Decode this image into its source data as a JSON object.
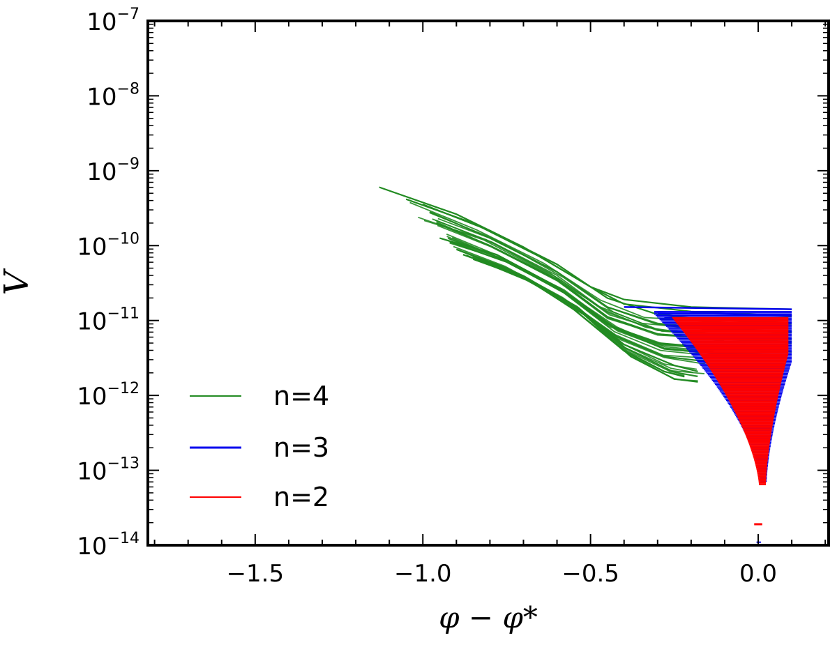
{
  "chart_data": {
    "type": "line",
    "title": "",
    "xlabel": "φ − φ*",
    "ylabel": "V",
    "xlim": [
      -1.82,
      0.21
    ],
    "ylim_log10": [
      -14,
      -7
    ],
    "yscale": "log",
    "grid": false,
    "legend_placement": "lower-left",
    "x_ticks": [
      {
        "value": -1.5,
        "label": "−1.5"
      },
      {
        "value": -1.0,
        "label": "−1.0"
      },
      {
        "value": -0.5,
        "label": "−0.5"
      },
      {
        "value": 0.0,
        "label": "0.0"
      }
    ],
    "y_ticks": [
      {
        "exp": -7,
        "base": "10",
        "sup": "−7"
      },
      {
        "exp": -8,
        "base": "10",
        "sup": "−8"
      },
      {
        "exp": -9,
        "base": "10",
        "sup": "−9"
      },
      {
        "exp": -10,
        "base": "10",
        "sup": "−10"
      },
      {
        "exp": -11,
        "base": "10",
        "sup": "−11"
      },
      {
        "exp": -12,
        "base": "10",
        "sup": "−12"
      },
      {
        "exp": -13,
        "base": "10",
        "sup": "−13"
      },
      {
        "exp": -14,
        "base": "10",
        "sup": "−14"
      }
    ],
    "series": [
      {
        "name": "n=4",
        "color": "#228B22",
        "description_points_log10V": [
          [
            [
              -1.13,
              -9.22
            ],
            [
              -0.9,
              -9.58
            ],
            [
              -0.7,
              -10.02
            ],
            [
              -0.5,
              -10.55
            ],
            [
              -0.4,
              -10.78
            ],
            [
              -0.2,
              -10.88
            ],
            [
              0.1,
              -10.94
            ]
          ],
          [
            [
              -1.05,
              -9.38
            ],
            [
              -0.85,
              -9.7
            ],
            [
              -0.65,
              -10.15
            ],
            [
              -0.5,
              -10.55
            ],
            [
              -0.4,
              -10.72
            ],
            [
              -0.2,
              -10.82
            ],
            [
              0.1,
              -10.85
            ]
          ],
          [
            [
              -1.0,
              -9.45
            ],
            [
              -0.8,
              -9.8
            ],
            [
              -0.6,
              -10.25
            ],
            [
              -0.45,
              -10.7
            ],
            [
              -0.3,
              -10.92
            ],
            [
              -0.1,
              -11.0
            ],
            [
              0.1,
              -11.03
            ]
          ],
          [
            [
              -0.98,
              -9.55
            ],
            [
              -0.8,
              -9.9
            ],
            [
              -0.6,
              -10.35
            ],
            [
              -0.45,
              -10.82
            ],
            [
              -0.3,
              -11.05
            ],
            [
              -0.1,
              -11.12
            ],
            [
              0.1,
              -11.15
            ]
          ],
          [
            [
              -0.96,
              -9.7
            ],
            [
              -0.8,
              -10.0
            ],
            [
              -0.6,
              -10.45
            ],
            [
              -0.45,
              -10.95
            ],
            [
              -0.3,
              -11.18
            ],
            [
              -0.1,
              -11.25
            ],
            [
              0.1,
              -11.28
            ]
          ],
          [
            [
              -0.95,
              -9.9
            ],
            [
              -0.78,
              -10.12
            ],
            [
              -0.6,
              -10.55
            ],
            [
              -0.45,
              -11.05
            ],
            [
              -0.3,
              -11.3
            ],
            [
              -0.1,
              -11.38
            ],
            [
              0.1,
              -11.42
            ]
          ],
          [
            [
              -0.92,
              -9.95
            ],
            [
              -0.75,
              -10.22
            ],
            [
              -0.58,
              -10.62
            ],
            [
              -0.42,
              -11.12
            ],
            [
              -0.28,
              -11.38
            ],
            [
              -0.1,
              -11.45
            ],
            [
              0.08,
              -11.48
            ]
          ],
          [
            [
              -0.9,
              -10.05
            ],
            [
              -0.75,
              -10.3
            ],
            [
              -0.58,
              -10.72
            ],
            [
              -0.42,
              -11.22
            ],
            [
              -0.28,
              -11.48
            ],
            [
              -0.15,
              -11.55
            ]
          ],
          [
            [
              -0.88,
              -10.12
            ],
            [
              -0.72,
              -10.38
            ],
            [
              -0.55,
              -10.8
            ],
            [
              -0.4,
              -11.32
            ],
            [
              -0.25,
              -11.6
            ],
            [
              -0.18,
              -11.68
            ]
          ],
          [
            [
              -0.85,
              -10.18
            ],
            [
              -0.7,
              -10.42
            ],
            [
              -0.55,
              -10.85
            ],
            [
              -0.4,
              -11.4
            ],
            [
              -0.28,
              -11.68
            ],
            [
              -0.22,
              -11.75
            ]
          ],
          [
            [
              -0.82,
              -10.22
            ],
            [
              -0.68,
              -10.48
            ],
            [
              -0.52,
              -10.92
            ],
            [
              -0.38,
              -11.48
            ],
            [
              -0.25,
              -11.78
            ],
            [
              -0.18,
              -11.82
            ]
          ]
        ]
      },
      {
        "name": "n=3",
        "color": "#0000EE",
        "description": "Dense blue horizontal lines from about x=-0.3 to 0.1 near V≈1e-11, narrowing toward x=0 down to about V≈1e-13.2; thin dashes below."
      },
      {
        "name": "n=2",
        "color": "#FF0000",
        "description": "Dense red horizontal lines forming a funnel from about x=-0.27 to 0.09 near V≈1e-11, narrowing toward x=0 down to about V≈1e-13.2; isolated dash near V≈1e-13.7."
      }
    ]
  }
}
